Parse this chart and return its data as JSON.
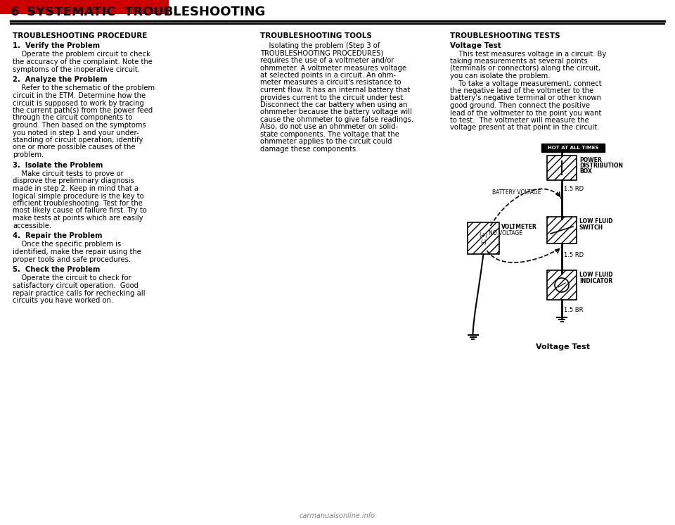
{
  "title_number": "6",
  "title_text": "SYSTEMATIC  TROUBLESHOOTING",
  "bg_color": "#ffffff",
  "text_color": "#000000",
  "header_bar_color": "#cc0000",
  "col1_header": "TROUBLESHOOTING PROCEDURE",
  "col2_header": "TROUBLESHOOTING TOOLS",
  "col3_header": "TROUBLESHOOTING TESTS",
  "col1_content": [
    {
      "bold": true,
      "text": "1.  Verify the Problem"
    },
    {
      "bold": false,
      "text": "    Operate the problem circuit to check\nthe accuracy of the complaint. Note the\nsymptoms of the inoperative circuit."
    },
    {
      "bold": true,
      "text": "2.  Analyze the Problem"
    },
    {
      "bold": false,
      "text": "    Refer to the schematic of the problem\ncircuit in the ETM. Determine how the\ncircuit is supposed to work by tracing\nthe current path(s) from the power feed\nthrough the circuit components to\nground. Then based on the symptoms\nyou noted in step 1 and your under-\nstanding of circuit operation, identify\none or more possible causes of the\nproblem."
    },
    {
      "bold": true,
      "text": "3.  Isolate the Problem"
    },
    {
      "bold": false,
      "text": "    Make circuit tests to prove or\ndisprove the preliminary diagnosis\nmade in step 2. Keep in mind that a\nlogical simple procedure is the key to\nefficient troubleshooting. Test for the\nmost likely cause of failure first. Try to\nmake tests at points which are easily\naccessible."
    },
    {
      "bold": true,
      "text": "4.  Repair the Problem"
    },
    {
      "bold": false,
      "text": "    Once the specific problem is\nidentified, make the repair using the\nproper tools and safe procedures."
    },
    {
      "bold": true,
      "text": "5.  Check the Problem"
    },
    {
      "bold": false,
      "text": "    Operate the circuit to check for\nsatisfactory circuit operation.  Good\nrepair practice calls for rechecking all\ncircuits you have worked on."
    }
  ],
  "col2_content": "    Isolating the problem (Step 3 of\nTROUBLESHOOTING PROCEDURES)\nrequires the use of a voltmeter and/or\nohmmeter. A voltmeter measures voltage\nat selected points in a circuit. An ohm-\nmeter measures a circuit's resistance to\ncurrent flow. It has an internal battery that\nprovides current to the circuit under test.\nDisconnect the car battery when using an\nohmmeter because the battery voltage will\ncause the ohmmeter to give false readings.\nAlso, do not use an ohmmeter on solid-\nstate components. The voltage that the\nohmmeter applies to the circuit could\ndamage these components.",
  "col2_bold_words": [
    "voltmeter",
    "ohmmeter."
  ],
  "col3_subheader": "Voltage Test",
  "col3_content": "    This test measures voltage in a circuit. By\ntaking measurements at several points\n(terminals or connectors) along the circuit,\nyou can isolate the problem.\n    To take a voltage measurement, connect\nthe negative lead of the voltmeter to the\nbattery's negative terminal or other known\ngood ground. Then connect the positive\nlead of the voltmeter to the point you want\nto test.  The voltmeter will measure the\nvoltage present at that point in the circuit.",
  "diagram_caption": "Voltage Test",
  "watermark": "carmanualsonline.info",
  "page_tab_color": "#cc0000"
}
